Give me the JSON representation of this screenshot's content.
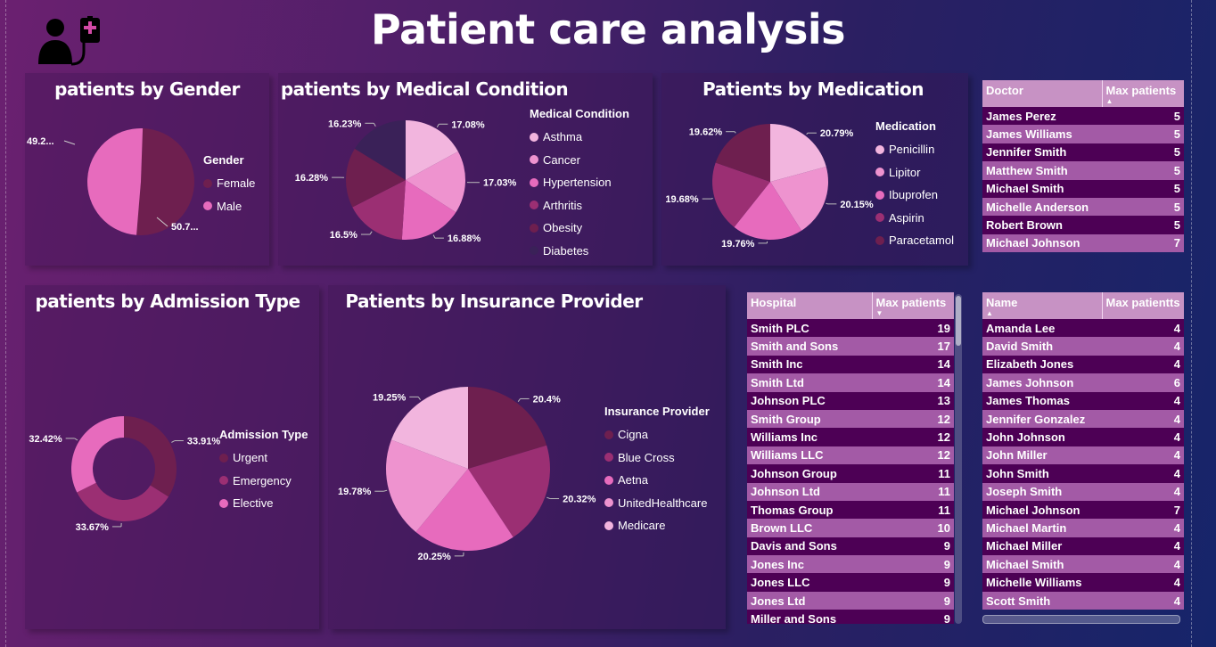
{
  "title": "Patient care analysis",
  "colors": {
    "c1": "#6e1f4f",
    "c2": "#9b2f73",
    "c3": "#e76bbd",
    "c4": "#ee93cf",
    "c5": "#f2b5de",
    "c6": "#3a2158"
  },
  "gender": {
    "title": "patients by Gender",
    "legend_title": "Gender",
    "labels": {
      "male": "49.2...",
      "female": "50.7..."
    },
    "chart_data": {
      "type": "pie",
      "categories": [
        "Female",
        "Male"
      ],
      "values": [
        50.7,
        49.2
      ]
    }
  },
  "condition": {
    "title": "patients by Medical Condition",
    "legend_title": "Medical Condition",
    "labels": [
      "17.08%",
      "17.03%",
      "16.88%",
      "16.5%",
      "16.28%",
      "16.23%"
    ],
    "chart_data": {
      "type": "pie",
      "categories": [
        "Asthma",
        "Cancer",
        "Hypertension",
        "Arthritis",
        "Obesity",
        "Diabetes"
      ],
      "values": [
        17.08,
        17.03,
        16.88,
        16.5,
        16.28,
        16.23
      ]
    }
  },
  "medication": {
    "title": "Patients by Medication",
    "legend_title": "Medication",
    "labels": [
      "20.79%",
      "20.15%",
      "19.76%",
      "19.68%",
      "19.62%"
    ],
    "chart_data": {
      "type": "pie",
      "categories": [
        "Penicillin",
        "Lipitor",
        "Ibuprofen",
        "Aspirin",
        "Paracetamol"
      ],
      "values": [
        20.79,
        20.15,
        19.76,
        19.68,
        19.62
      ]
    }
  },
  "admission": {
    "title": "patients by Admission Type",
    "legend_title": "Admission Type",
    "labels": [
      "33.91%",
      "33.67%",
      "32.42%"
    ],
    "chart_data": {
      "type": "pie",
      "categories": [
        "Urgent",
        "Emergency",
        "Elective"
      ],
      "values": [
        33.91,
        33.67,
        32.42
      ]
    }
  },
  "insurance": {
    "title": "Patients by Insurance Provider",
    "legend_title": "Insurance Provider",
    "labels": [
      "20.4%",
      "20.32%",
      "20.25%",
      "19.78%",
      "19.25%"
    ],
    "chart_data": {
      "type": "pie",
      "categories": [
        "Cigna",
        "Blue Cross",
        "Aetna",
        "UnitedHealthcare",
        "Medicare"
      ],
      "values": [
        20.4,
        20.32,
        20.25,
        19.78,
        19.25
      ]
    }
  },
  "doctor_table": {
    "headers": [
      "Doctor",
      "Max patients"
    ],
    "rows": [
      [
        "James Perez",
        "5"
      ],
      [
        "James Williams",
        "5"
      ],
      [
        "Jennifer Smith",
        "5"
      ],
      [
        "Matthew Smith",
        "5"
      ],
      [
        "Michael Smith",
        "5"
      ],
      [
        "Michelle Anderson",
        "5"
      ],
      [
        "Robert Brown",
        "5"
      ],
      [
        "Michael Johnson",
        "7"
      ]
    ]
  },
  "hospital_table": {
    "headers": [
      "Hospital",
      "Max patients"
    ],
    "rows": [
      [
        "Smith PLC",
        "19"
      ],
      [
        "Smith and Sons",
        "17"
      ],
      [
        "Smith Inc",
        "14"
      ],
      [
        "Smith Ltd",
        "14"
      ],
      [
        "Johnson PLC",
        "13"
      ],
      [
        "Smith Group",
        "12"
      ],
      [
        "Williams Inc",
        "12"
      ],
      [
        "Williams LLC",
        "12"
      ],
      [
        "Johnson Group",
        "11"
      ],
      [
        "Johnson Ltd",
        "11"
      ],
      [
        "Thomas Group",
        "11"
      ],
      [
        "Brown LLC",
        "10"
      ],
      [
        "Davis and Sons",
        "9"
      ],
      [
        "Jones Inc",
        "9"
      ],
      [
        "Jones LLC",
        "9"
      ],
      [
        "Jones Ltd",
        "9"
      ],
      [
        "Miller and Sons",
        "9"
      ]
    ]
  },
  "name_table": {
    "headers": [
      "Name",
      "Max patientts"
    ],
    "rows": [
      [
        "Amanda Lee",
        "4"
      ],
      [
        "David Smith",
        "4"
      ],
      [
        "Elizabeth Jones",
        "4"
      ],
      [
        "James Johnson",
        "6"
      ],
      [
        "James Thomas",
        "4"
      ],
      [
        "Jennifer Gonzalez",
        "4"
      ],
      [
        "John Johnson",
        "4"
      ],
      [
        "John Miller",
        "4"
      ],
      [
        "John Smith",
        "4"
      ],
      [
        "Joseph Smith",
        "4"
      ],
      [
        "Michael Johnson",
        "7"
      ],
      [
        "Michael Martin",
        "4"
      ],
      [
        "Michael Miller",
        "4"
      ],
      [
        "Michael Smith",
        "4"
      ],
      [
        "Michelle Williams",
        "4"
      ],
      [
        "Scott Smith",
        "4"
      ]
    ]
  }
}
